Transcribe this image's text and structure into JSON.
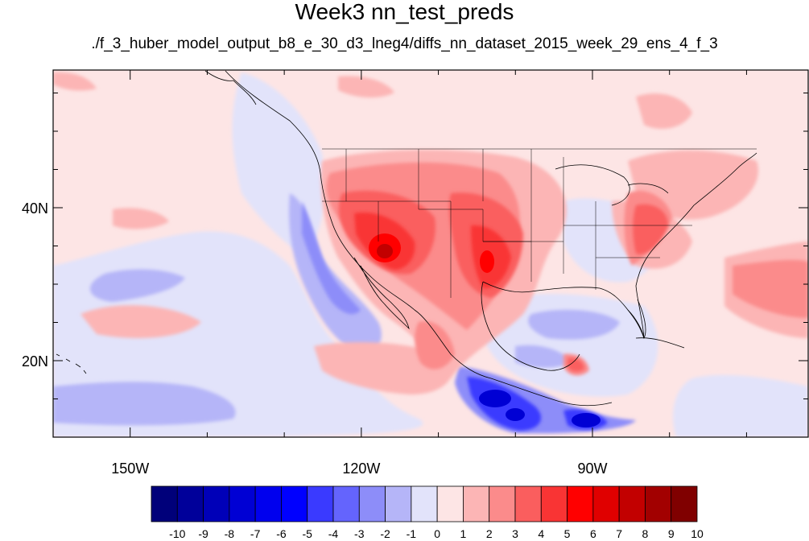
{
  "title": "Week3 nn_test_preds",
  "subtitle": "./f_3_huber_model_output_b8_e_30_d3_lneg4/diffs_nn_dataset_2015_week_29_ens_4_f_3",
  "map": {
    "lon_range": [
      -160,
      -62
    ],
    "lat_range": [
      10,
      58
    ],
    "x_ticks": [
      {
        "lon": -150,
        "label": "150W"
      },
      {
        "lon": -120,
        "label": "120W"
      },
      {
        "lon": -90,
        "label": "90W"
      }
    ],
    "y_ticks": [
      {
        "lat": 40,
        "label": "40N"
      },
      {
        "lat": 20,
        "label": "20N"
      }
    ],
    "minor_lon_step": 10,
    "minor_lat_step": 5,
    "background_color": "#fde5e5"
  },
  "colorbar": {
    "labels": [
      "-10",
      "-9",
      "-8",
      "-7",
      "-6",
      "-5",
      "-4",
      "-3",
      "-2",
      "-1",
      "0",
      "1",
      "2",
      "3",
      "4",
      "5",
      "6",
      "7",
      "8",
      "9",
      "10"
    ],
    "colors": [
      "#00007a",
      "#00009a",
      "#0000b8",
      "#0000d4",
      "#0000ee",
      "#0000ff",
      "#3a3aff",
      "#6464fd",
      "#8d8df9",
      "#b5b5f8",
      "#e2e3fa",
      "#fde5e5",
      "#fcb5b5",
      "#fb8b8b",
      "#fa5e5e",
      "#f93434",
      "#ff0000",
      "#e00000",
      "#c20000",
      "#a20000",
      "#800000"
    ]
  }
}
